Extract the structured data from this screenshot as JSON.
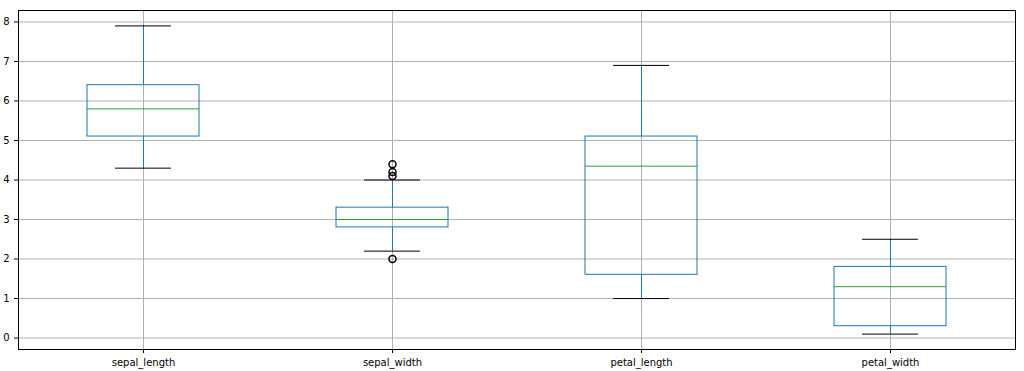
{
  "chart_data": {
    "type": "box",
    "categories": [
      "sepal_length",
      "sepal_width",
      "petal_length",
      "petal_width"
    ],
    "whisker_low": [
      4.3,
      2.2,
      1.0,
      0.1
    ],
    "q1": [
      5.1,
      2.8,
      1.6,
      0.3
    ],
    "median": [
      5.8,
      3.0,
      4.35,
      1.3
    ],
    "q3": [
      6.4,
      3.3,
      5.1,
      1.8
    ],
    "whisker_high": [
      7.9,
      4.0,
      6.9,
      2.5
    ],
    "outliers": [
      [],
      [
        4.4,
        4.1,
        4.2,
        2.0
      ],
      [],
      []
    ],
    "color": "#1f77b4",
    "ylim": [
      -0.29,
      8.29
    ],
    "yticks": [
      0,
      1,
      2,
      3,
      4,
      5,
      6,
      7,
      8
    ],
    "grid": true
  }
}
